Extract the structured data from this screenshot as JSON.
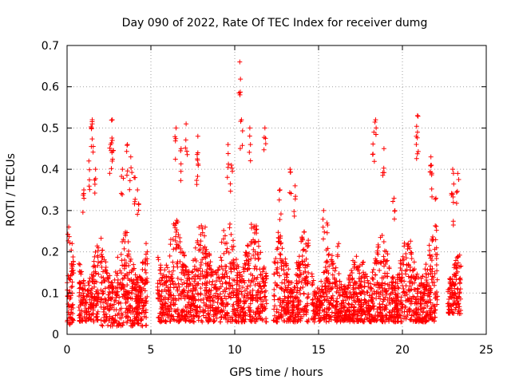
{
  "chart_data": {
    "type": "scatter",
    "title": "Day 090 of 2022, Rate Of TEC Index for receiver dumg",
    "xlabel": "GPS time / hours",
    "ylabel": "ROTI / TECUs",
    "xlim": [
      0,
      25
    ],
    "ylim": [
      0,
      0.7
    ],
    "xticks": [
      0,
      5,
      10,
      15,
      20,
      25
    ],
    "yticks": [
      0,
      0.1,
      0.2,
      0.3,
      0.4,
      0.5,
      0.6,
      0.7
    ],
    "grid": true,
    "marker": "+",
    "color": "#ff0000",
    "segments": [
      {
        "x_start": 0.0,
        "x_end": 0.4,
        "typical": [
          0.02,
          0.18
        ],
        "spikes": [
          [
            0.1,
            0.26
          ],
          [
            0.3,
            0.22
          ]
        ]
      },
      {
        "x_start": 0.7,
        "x_end": 1.9,
        "typical": [
          0.03,
          0.22
        ],
        "spikes": [
          [
            1.0,
            0.35
          ],
          [
            1.5,
            0.52
          ],
          [
            1.5,
            0.51
          ],
          [
            1.7,
            0.4
          ],
          [
            1.3,
            0.42
          ]
        ]
      },
      {
        "x_start": 2.0,
        "x_end": 4.8,
        "typical": [
          0.02,
          0.26
        ],
        "spikes": [
          [
            2.7,
            0.52
          ],
          [
            2.7,
            0.47
          ],
          [
            2.6,
            0.46
          ],
          [
            3.6,
            0.46
          ],
          [
            3.8,
            0.43
          ],
          [
            4.0,
            0.38
          ],
          [
            4.2,
            0.35
          ],
          [
            3.3,
            0.4
          ]
        ]
      },
      {
        "x_start": 5.4,
        "x_end": 11.9,
        "typical": [
          0.03,
          0.28
        ],
        "spikes": [
          [
            6.5,
            0.5
          ],
          [
            6.8,
            0.45
          ],
          [
            7.1,
            0.51
          ],
          [
            7.8,
            0.48
          ],
          [
            7.8,
            0.44
          ],
          [
            9.6,
            0.46
          ],
          [
            10.3,
            0.66
          ],
          [
            10.4,
            0.52
          ],
          [
            10.9,
            0.5
          ],
          [
            11.8,
            0.5
          ],
          [
            9.8,
            0.41
          ]
        ]
      },
      {
        "x_start": 12.3,
        "x_end": 14.4,
        "typical": [
          0.03,
          0.25
        ],
        "spikes": [
          [
            13.3,
            0.4
          ],
          [
            13.6,
            0.36
          ],
          [
            12.7,
            0.35
          ]
        ]
      },
      {
        "x_start": 14.6,
        "x_end": 17.6,
        "typical": [
          0.03,
          0.2
        ],
        "spikes": [
          [
            15.3,
            0.3
          ],
          [
            15.5,
            0.27
          ],
          [
            16.2,
            0.22
          ]
        ]
      },
      {
        "x_start": 17.6,
        "x_end": 22.1,
        "typical": [
          0.03,
          0.24
        ],
        "spikes": [
          [
            18.4,
            0.52
          ],
          [
            18.3,
            0.49
          ],
          [
            18.9,
            0.45
          ],
          [
            20.9,
            0.53
          ],
          [
            20.9,
            0.49
          ],
          [
            21.7,
            0.43
          ],
          [
            21.7,
            0.41
          ],
          [
            19.5,
            0.33
          ],
          [
            22.0,
            0.33
          ]
        ]
      },
      {
        "x_start": 22.7,
        "x_end": 23.5,
        "typical": [
          0.05,
          0.2
        ],
        "spikes": [
          [
            23.0,
            0.4
          ],
          [
            23.3,
            0.39
          ],
          [
            23.0,
            0.34
          ]
        ]
      }
    ]
  }
}
